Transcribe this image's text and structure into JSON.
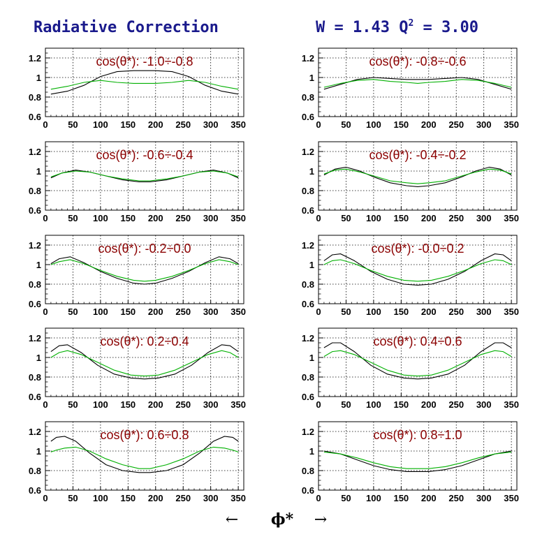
{
  "header": {
    "title": "Radiative Correction",
    "kinematics_prefix": "W = 1.43  Q",
    "kinematics_sup": "2",
    "kinematics_suffix": " = 3.00"
  },
  "x_axis": {
    "left_arrow": "←",
    "label": "ϕ*",
    "right_arrow": "→"
  },
  "colors": {
    "series_a": "#000000",
    "series_b": "#00b000",
    "title": "#8b0000",
    "header": "#1a1a8c"
  },
  "chart_data": [
    {
      "type": "line",
      "title": "cos(θ*): -1.0÷-0.8",
      "xlim": [
        0,
        360
      ],
      "ylim": [
        0.6,
        1.3
      ],
      "xticks": [
        0,
        50,
        100,
        150,
        200,
        250,
        300,
        350
      ],
      "yticks": [
        0.6,
        0.8,
        1,
        1.2
      ],
      "grid": true,
      "x": [
        10,
        40,
        70,
        100,
        130,
        160,
        180,
        200,
        230,
        260,
        290,
        320,
        350
      ],
      "series": [
        {
          "values": [
            0.83,
            0.86,
            0.92,
            1.01,
            1.06,
            1.07,
            1.07,
            1.07,
            1.06,
            1.01,
            0.92,
            0.86,
            0.83
          ]
        },
        {
          "values": [
            0.88,
            0.91,
            0.95,
            0.97,
            0.95,
            0.94,
            0.94,
            0.94,
            0.95,
            0.97,
            0.95,
            0.91,
            0.88
          ]
        }
      ]
    },
    {
      "type": "line",
      "title": "cos(θ*): -0.8÷-0.6",
      "xlim": [
        0,
        360
      ],
      "ylim": [
        0.6,
        1.3
      ],
      "xticks": [
        0,
        50,
        100,
        150,
        200,
        250,
        300,
        350
      ],
      "yticks": [
        0.6,
        0.8,
        1,
        1.2
      ],
      "grid": true,
      "x": [
        10,
        40,
        70,
        100,
        130,
        160,
        180,
        200,
        230,
        260,
        290,
        320,
        350
      ],
      "series": [
        {
          "values": [
            0.88,
            0.93,
            0.98,
            1.0,
            0.99,
            0.98,
            0.98,
            0.98,
            0.99,
            1.0,
            0.98,
            0.93,
            0.88
          ]
        },
        {
          "values": [
            0.9,
            0.94,
            0.97,
            0.98,
            0.96,
            0.95,
            0.94,
            0.95,
            0.96,
            0.98,
            0.97,
            0.94,
            0.9
          ]
        }
      ]
    },
    {
      "type": "line",
      "title": "cos(θ*): -0.6÷-0.4",
      "xlim": [
        0,
        360
      ],
      "ylim": [
        0.6,
        1.3
      ],
      "xticks": [
        0,
        50,
        100,
        150,
        200,
        250,
        300,
        350
      ],
      "yticks": [
        0.6,
        0.8,
        1,
        1.2
      ],
      "grid": true,
      "x": [
        10,
        30,
        55,
        80,
        110,
        140,
        170,
        190,
        220,
        250,
        280,
        305,
        330,
        350
      ],
      "series": [
        {
          "values": [
            0.93,
            0.98,
            1.01,
            0.99,
            0.95,
            0.91,
            0.89,
            0.89,
            0.91,
            0.95,
            0.99,
            1.01,
            0.98,
            0.93
          ]
        },
        {
          "values": [
            0.94,
            0.98,
            1.0,
            0.99,
            0.95,
            0.92,
            0.9,
            0.9,
            0.92,
            0.95,
            0.99,
            1.0,
            0.98,
            0.94
          ]
        }
      ]
    },
    {
      "type": "line",
      "title": "cos(θ*): -0.4÷-0.2",
      "xlim": [
        0,
        360
      ],
      "ylim": [
        0.6,
        1.3
      ],
      "xticks": [
        0,
        50,
        100,
        150,
        200,
        250,
        300,
        350
      ],
      "yticks": [
        0.6,
        0.8,
        1,
        1.2
      ],
      "grid": true,
      "x": [
        10,
        30,
        50,
        75,
        100,
        130,
        160,
        180,
        200,
        230,
        260,
        285,
        310,
        330,
        350
      ],
      "series": [
        {
          "values": [
            0.96,
            1.02,
            1.04,
            1.0,
            0.94,
            0.88,
            0.85,
            0.84,
            0.85,
            0.88,
            0.94,
            1.0,
            1.04,
            1.02,
            0.96
          ]
        },
        {
          "values": [
            0.97,
            1.01,
            1.02,
            0.99,
            0.95,
            0.9,
            0.88,
            0.87,
            0.88,
            0.9,
            0.95,
            0.99,
            1.02,
            1.01,
            0.97
          ]
        }
      ]
    },
    {
      "type": "line",
      "title": "cos(θ*): -0.2÷0.0",
      "xlim": [
        0,
        360
      ],
      "ylim": [
        0.6,
        1.3
      ],
      "xticks": [
        0,
        50,
        100,
        150,
        200,
        250,
        300,
        350
      ],
      "yticks": [
        0.6,
        0.8,
        1,
        1.2
      ],
      "grid": true,
      "x": [
        10,
        25,
        45,
        70,
        100,
        130,
        160,
        180,
        200,
        230,
        260,
        290,
        315,
        335,
        350
      ],
      "series": [
        {
          "values": [
            1.01,
            1.06,
            1.08,
            1.02,
            0.93,
            0.86,
            0.81,
            0.8,
            0.81,
            0.86,
            0.93,
            1.02,
            1.08,
            1.06,
            1.01
          ]
        },
        {
          "values": [
            1.0,
            1.03,
            1.05,
            1.01,
            0.94,
            0.88,
            0.84,
            0.83,
            0.84,
            0.88,
            0.94,
            1.01,
            1.05,
            1.03,
            1.0
          ]
        }
      ]
    },
    {
      "type": "line",
      "title": "cos(θ*): -0.0÷0.2",
      "xlim": [
        0,
        360
      ],
      "ylim": [
        0.6,
        1.3
      ],
      "xticks": [
        0,
        50,
        100,
        150,
        200,
        250,
        300,
        350
      ],
      "yticks": [
        0.6,
        0.8,
        1,
        1.2
      ],
      "grid": true,
      "x": [
        10,
        25,
        40,
        65,
        95,
        125,
        155,
        180,
        205,
        235,
        265,
        295,
        320,
        335,
        350
      ],
      "series": [
        {
          "values": [
            1.04,
            1.1,
            1.11,
            1.04,
            0.93,
            0.85,
            0.8,
            0.79,
            0.8,
            0.85,
            0.93,
            1.04,
            1.11,
            1.1,
            1.04
          ]
        },
        {
          "values": [
            1.0,
            1.04,
            1.05,
            1.01,
            0.94,
            0.88,
            0.84,
            0.83,
            0.84,
            0.88,
            0.94,
            1.01,
            1.05,
            1.04,
            1.0
          ]
        }
      ]
    },
    {
      "type": "line",
      "title": "cos(θ*): 0.2÷0.4",
      "xlim": [
        0,
        360
      ],
      "ylim": [
        0.6,
        1.3
      ],
      "xticks": [
        0,
        50,
        100,
        150,
        200,
        250,
        300,
        350
      ],
      "yticks": [
        0.6,
        0.8,
        1,
        1.2
      ],
      "grid": true,
      "x": [
        10,
        25,
        40,
        65,
        95,
        125,
        155,
        180,
        205,
        235,
        265,
        295,
        320,
        335,
        350
      ],
      "series": [
        {
          "values": [
            1.06,
            1.12,
            1.13,
            1.05,
            0.92,
            0.83,
            0.79,
            0.78,
            0.79,
            0.83,
            0.92,
            1.05,
            1.13,
            1.12,
            1.06
          ]
        },
        {
          "values": [
            1.0,
            1.05,
            1.07,
            1.03,
            0.95,
            0.87,
            0.82,
            0.81,
            0.82,
            0.87,
            0.95,
            1.03,
            1.07,
            1.05,
            1.0
          ]
        }
      ]
    },
    {
      "type": "line",
      "title": "cos(θ*): 0.4÷0.6",
      "xlim": [
        0,
        360
      ],
      "ylim": [
        0.6,
        1.3
      ],
      "xticks": [
        0,
        50,
        100,
        150,
        200,
        250,
        300,
        350
      ],
      "yticks": [
        0.6,
        0.8,
        1,
        1.2
      ],
      "grid": true,
      "x": [
        10,
        25,
        40,
        65,
        95,
        125,
        155,
        180,
        205,
        235,
        265,
        295,
        320,
        335,
        350
      ],
      "series": [
        {
          "values": [
            1.1,
            1.15,
            1.15,
            1.06,
            0.92,
            0.83,
            0.79,
            0.78,
            0.79,
            0.83,
            0.92,
            1.06,
            1.15,
            1.15,
            1.1
          ]
        },
        {
          "values": [
            1.01,
            1.06,
            1.07,
            1.03,
            0.95,
            0.87,
            0.82,
            0.81,
            0.82,
            0.87,
            0.95,
            1.03,
            1.07,
            1.06,
            1.01
          ]
        }
      ]
    },
    {
      "type": "line",
      "title": "cos(θ*): 0.6÷0.8",
      "xlim": [
        0,
        360
      ],
      "ylim": [
        0.6,
        1.3
      ],
      "xticks": [
        0,
        50,
        100,
        150,
        200,
        250,
        300,
        350
      ],
      "yticks": [
        0.6,
        0.8,
        1,
        1.2
      ],
      "grid": true,
      "x": [
        10,
        20,
        35,
        55,
        80,
        110,
        140,
        170,
        190,
        220,
        250,
        280,
        305,
        325,
        340,
        350
      ],
      "series": [
        {
          "values": [
            1.1,
            1.14,
            1.15,
            1.1,
            0.98,
            0.86,
            0.8,
            0.78,
            0.78,
            0.8,
            0.86,
            0.98,
            1.1,
            1.15,
            1.14,
            1.1
          ]
        },
        {
          "values": [
            0.99,
            1.01,
            1.03,
            1.04,
            1.0,
            0.92,
            0.86,
            0.82,
            0.82,
            0.86,
            0.92,
            1.0,
            1.04,
            1.03,
            1.01,
            0.99
          ]
        }
      ]
    },
    {
      "type": "line",
      "title": "cos(θ*): 0.8÷1.0",
      "xlim": [
        0,
        360
      ],
      "ylim": [
        0.6,
        1.3
      ],
      "xticks": [
        0,
        50,
        100,
        150,
        200,
        250,
        300,
        350
      ],
      "yticks": [
        0.6,
        0.8,
        1,
        1.2
      ],
      "grid": true,
      "x": [
        10,
        40,
        70,
        100,
        130,
        160,
        180,
        200,
        230,
        260,
        290,
        320,
        350
      ],
      "series": [
        {
          "values": [
            1.0,
            0.97,
            0.91,
            0.85,
            0.81,
            0.79,
            0.79,
            0.79,
            0.81,
            0.85,
            0.91,
            0.97,
            1.0
          ]
        },
        {
          "values": [
            0.99,
            0.97,
            0.93,
            0.88,
            0.84,
            0.82,
            0.82,
            0.82,
            0.84,
            0.88,
            0.93,
            0.97,
            0.99
          ]
        }
      ]
    }
  ]
}
